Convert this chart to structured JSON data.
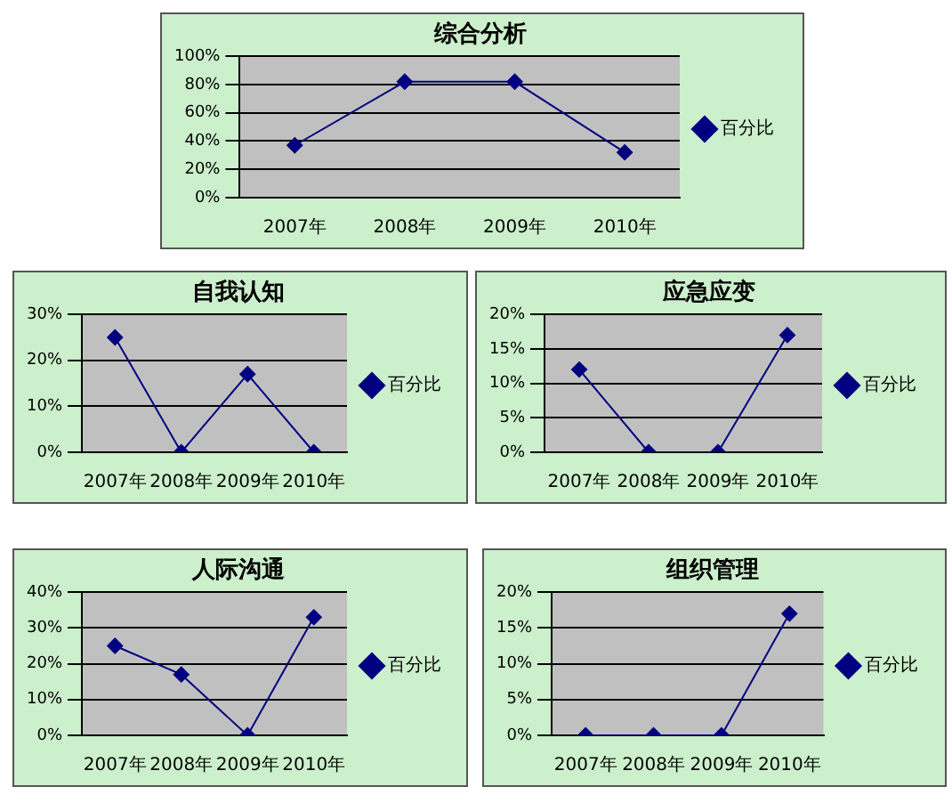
{
  "chart_data": [
    {
      "type": "line",
      "title": "综合分析",
      "categories": [
        "2007年",
        "2008年",
        "2009年",
        "2010年"
      ],
      "series": [
        {
          "name": "百分比",
          "color": "#000080",
          "values": [
            37,
            82,
            82,
            32
          ]
        }
      ],
      "ylim": [
        0,
        100
      ],
      "yticks": [
        {
          "value": 0,
          "label": "0%"
        },
        {
          "value": 20,
          "label": "20%"
        },
        {
          "value": 40,
          "label": "40%"
        },
        {
          "value": 60,
          "label": "60%"
        },
        {
          "value": 80,
          "label": "80%"
        },
        {
          "value": 100,
          "label": "100%"
        }
      ],
      "grid": "y",
      "legend": "right",
      "marker": "diamond",
      "line_style": "solid"
    },
    {
      "type": "line",
      "title": "自我认知",
      "categories": [
        "2007年",
        "2008年",
        "2009年",
        "2010年"
      ],
      "series": [
        {
          "name": "百分比",
          "color": "#000080",
          "values": [
            25,
            0,
            17,
            0
          ]
        }
      ],
      "ylim": [
        0,
        30
      ],
      "yticks": [
        {
          "value": 0,
          "label": "0%"
        },
        {
          "value": 10,
          "label": "10%"
        },
        {
          "value": 20,
          "label": "20%"
        },
        {
          "value": 30,
          "label": "30%"
        }
      ],
      "grid": "y",
      "legend": "right",
      "marker": "diamond",
      "line_style": "solid"
    },
    {
      "type": "line",
      "title": "应急应变",
      "categories": [
        "2007年",
        "2008年",
        "2009年",
        "2010年"
      ],
      "series": [
        {
          "name": "百分比",
          "color": "#000080",
          "values": [
            12,
            0,
            0,
            17
          ]
        }
      ],
      "ylim": [
        0,
        20
      ],
      "yticks": [
        {
          "value": 0,
          "label": "0%"
        },
        {
          "value": 5,
          "label": "5%"
        },
        {
          "value": 10,
          "label": "10%"
        },
        {
          "value": 15,
          "label": "15%"
        },
        {
          "value": 20,
          "label": "20%"
        }
      ],
      "grid": "y",
      "legend": "right",
      "marker": "diamond",
      "line_style": "solid"
    },
    {
      "type": "line",
      "title": "人际沟通",
      "categories": [
        "2007年",
        "2008年",
        "2009年",
        "2010年"
      ],
      "series": [
        {
          "name": "百分比",
          "color": "#000080",
          "values": [
            25,
            17,
            0,
            33
          ]
        }
      ],
      "ylim": [
        0,
        40
      ],
      "yticks": [
        {
          "value": 0,
          "label": "0%"
        },
        {
          "value": 10,
          "label": "10%"
        },
        {
          "value": 20,
          "label": "20%"
        },
        {
          "value": 30,
          "label": "30%"
        },
        {
          "value": 40,
          "label": "40%"
        }
      ],
      "grid": "y",
      "legend": "right",
      "marker": "diamond",
      "line_style": "solid"
    },
    {
      "type": "line",
      "title": "组织管理",
      "categories": [
        "2007年",
        "2008年",
        "2009年",
        "2010年"
      ],
      "series": [
        {
          "name": "百分比",
          "color": "#000080",
          "values": [
            0,
            0,
            0,
            17
          ]
        }
      ],
      "ylim": [
        0,
        20
      ],
      "yticks": [
        {
          "value": 0,
          "label": "0%"
        },
        {
          "value": 5,
          "label": "5%"
        },
        {
          "value": 10,
          "label": "10%"
        },
        {
          "value": 15,
          "label": "15%"
        },
        {
          "value": 20,
          "label": "20%"
        }
      ],
      "grid": "y",
      "legend": "right",
      "marker": "diamond",
      "line_style": "solid"
    }
  ]
}
